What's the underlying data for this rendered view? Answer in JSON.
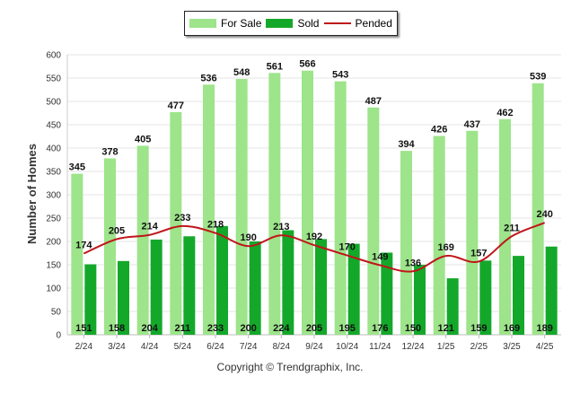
{
  "chart_data": {
    "type": "bar",
    "categories": [
      "2/24",
      "3/24",
      "4/24",
      "5/24",
      "6/24",
      "7/24",
      "8/24",
      "9/24",
      "10/24",
      "11/24",
      "12/24",
      "1/25",
      "2/25",
      "3/25",
      "4/25"
    ],
    "series": [
      {
        "name": "For Sale",
        "kind": "bar",
        "color": "#9de48a",
        "values": [
          345,
          378,
          405,
          477,
          536,
          548,
          561,
          566,
          543,
          487,
          394,
          426,
          437,
          462,
          539
        ]
      },
      {
        "name": "Sold",
        "kind": "bar",
        "color": "#14a82a",
        "values": [
          151,
          158,
          204,
          211,
          233,
          200,
          224,
          205,
          195,
          176,
          150,
          121,
          159,
          169,
          189
        ]
      },
      {
        "name": "Pended",
        "kind": "line",
        "color": "#c0161a",
        "values": [
          174,
          205,
          214,
          233,
          218,
          190,
          213,
          192,
          170,
          149,
          136,
          169,
          157,
          211,
          240
        ]
      }
    ],
    "ylabel": "Number of Homes",
    "xlabel": "",
    "ylim": [
      0,
      600
    ],
    "yticks": [
      0,
      50,
      100,
      150,
      200,
      250,
      300,
      350,
      400,
      450,
      500,
      550,
      600
    ],
    "grid": true,
    "legend_position": "top-center"
  },
  "legend": {
    "items": [
      {
        "label": "For Sale",
        "color": "#9de48a",
        "kind": "bar"
      },
      {
        "label": "Sold",
        "color": "#14a82a",
        "kind": "bar"
      },
      {
        "label": "Pended",
        "color": "#c0161a",
        "kind": "line"
      }
    ]
  },
  "footer": {
    "copyright": "Copyright © Trendgraphix, Inc."
  }
}
